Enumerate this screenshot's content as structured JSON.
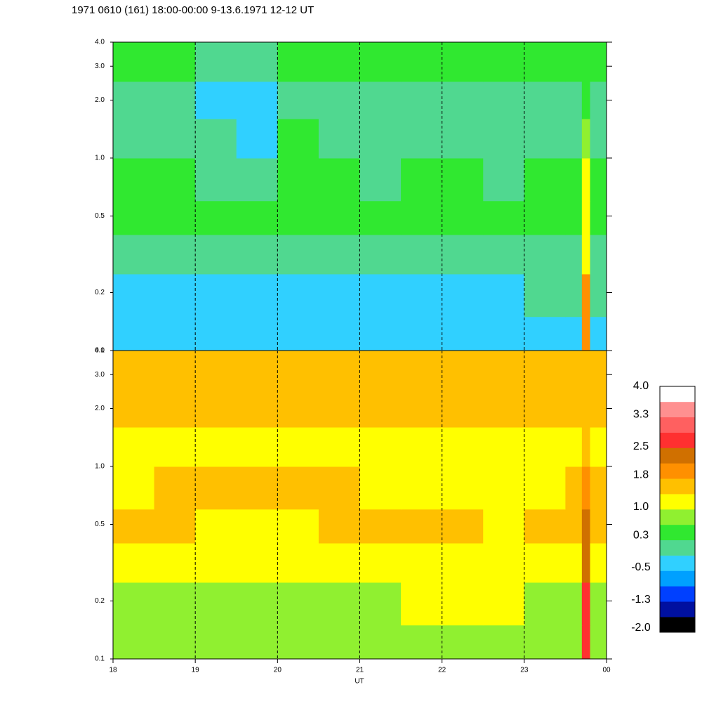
{
  "chart_data": {
    "type": "heatmap",
    "title": "1971 0610 (161) 18:00-00:00 9-13.6.1971  12-12 UT",
    "xlabel": "UT",
    "xlim": [
      18,
      24
    ],
    "xticks": [
      18,
      19,
      20,
      21,
      22,
      23,
      {
        "value": 24,
        "label": "00"
      }
    ],
    "ylim": [
      0.1,
      {
        "value": 4,
        "label": "4.0"
      }
    ],
    "yscale": "log",
    "yticks": [
      0.1,
      0.2,
      0.5,
      {
        "value": 1,
        "label": "1.0"
      },
      {
        "value": 2,
        "label": "2.0"
      },
      {
        "value": 3,
        "label": "3.0"
      },
      {
        "value": 4,
        "label": "4.0"
      }
    ],
    "grid": true,
    "xbins": [
      18,
      18.5,
      19,
      19.5,
      20,
      20.5,
      21,
      21.5,
      22,
      22.5,
      23,
      23.5,
      23.7,
      23.8,
      24
    ],
    "ybins": [
      0.1,
      0.15,
      0.25,
      0.4,
      0.6,
      1.0,
      1.6,
      2.5,
      4.0
    ],
    "panels": [
      {
        "z": [
          [
            -0.3,
            -0.3,
            -0.4,
            -0.4,
            -0.3,
            -0.3,
            -0.3,
            -0.3,
            -0.3,
            -0.3,
            -0.3,
            -0.3,
            1.9,
            -0.3
          ],
          [
            -0.2,
            -0.2,
            -0.3,
            -0.3,
            -0.2,
            -0.2,
            -0.2,
            -0.2,
            -0.2,
            -0.2,
            -0.1,
            -0.1,
            1.9,
            -0.1
          ],
          [
            0.1,
            0.0,
            -0.1,
            -0.1,
            0.0,
            0.1,
            0.0,
            0.0,
            0.0,
            0.0,
            0.1,
            0.1,
            1.2,
            0.1
          ],
          [
            0.4,
            0.4,
            0.3,
            0.3,
            0.4,
            0.4,
            0.3,
            0.4,
            0.4,
            0.3,
            0.3,
            0.3,
            1.2,
            0.3
          ],
          [
            0.3,
            0.3,
            0.1,
            0.0,
            0.3,
            0.3,
            0.2,
            0.3,
            0.3,
            0.2,
            0.3,
            0.3,
            1.0,
            0.3
          ],
          [
            0.1,
            0.2,
            -0.1,
            -0.2,
            0.3,
            0.1,
            0.0,
            0.1,
            0.1,
            0.0,
            0.1,
            0.1,
            0.7,
            0.1
          ],
          [
            0.0,
            0.0,
            -0.2,
            -0.2,
            0.2,
            0.0,
            0.0,
            0.0,
            0.1,
            0.0,
            0.0,
            0.0,
            0.3,
            0.0
          ],
          [
            0.3,
            0.3,
            0.1,
            0.1,
            0.4,
            0.3,
            0.3,
            0.3,
            0.4,
            0.3,
            0.3,
            0.3,
            0.4,
            0.3
          ]
        ]
      },
      {
        "z": [
          [
            0.7,
            0.7,
            0.7,
            0.7,
            0.7,
            0.7,
            0.7,
            0.7,
            0.8,
            0.9,
            0.7,
            0.7,
            2.6,
            0.7
          ],
          [
            0.8,
            0.8,
            0.8,
            0.8,
            0.8,
            0.8,
            0.8,
            1.0,
            1.1,
            1.1,
            0.8,
            0.8,
            2.6,
            0.8
          ],
          [
            1.1,
            1.1,
            1.0,
            1.0,
            1.0,
            1.0,
            1.1,
            1.1,
            1.1,
            1.0,
            1.2,
            1.2,
            2.3,
            1.2
          ],
          [
            1.5,
            1.5,
            1.2,
            1.2,
            1.2,
            1.5,
            1.6,
            1.6,
            1.5,
            1.3,
            1.5,
            1.5,
            2.3,
            1.5
          ],
          [
            1.0,
            1.5,
            1.6,
            1.5,
            1.6,
            1.5,
            1.0,
            1.0,
            1.0,
            1.0,
            1.0,
            1.5,
            1.9,
            1.5
          ],
          [
            1.1,
            1.1,
            1.1,
            1.1,
            1.2,
            1.2,
            1.1,
            1.1,
            1.1,
            1.1,
            1.1,
            1.1,
            1.6,
            1.1
          ],
          [
            1.5,
            1.5,
            1.5,
            1.5,
            1.6,
            1.6,
            1.5,
            1.5,
            1.5,
            1.5,
            1.5,
            1.5,
            1.6,
            1.5
          ],
          [
            1.4,
            1.4,
            1.4,
            1.4,
            1.5,
            1.5,
            1.4,
            1.4,
            1.4,
            1.4,
            1.4,
            1.4,
            1.4,
            1.4
          ]
        ]
      }
    ],
    "colorbar": {
      "clim": [
        -2,
        4
      ],
      "colors": [
        "#000000",
        "#0010a0",
        "#0040ff",
        "#00a0ff",
        "#30d0ff",
        "#50d890",
        "#30e830",
        "#90f030",
        "#ffff00",
        "#ffc000",
        "#ff9000",
        "#d07000",
        "#ff3030",
        "#ff6060",
        "#ff9090",
        "#ffffff"
      ],
      "ticks": [
        {
          "value": -2,
          "label": "-2.0"
        },
        -1.3,
        -0.5,
        0.3,
        {
          "value": 1,
          "label": "1.0"
        },
        1.8,
        2.5,
        3.3,
        {
          "value": 4,
          "label": "4.0"
        }
      ]
    }
  }
}
